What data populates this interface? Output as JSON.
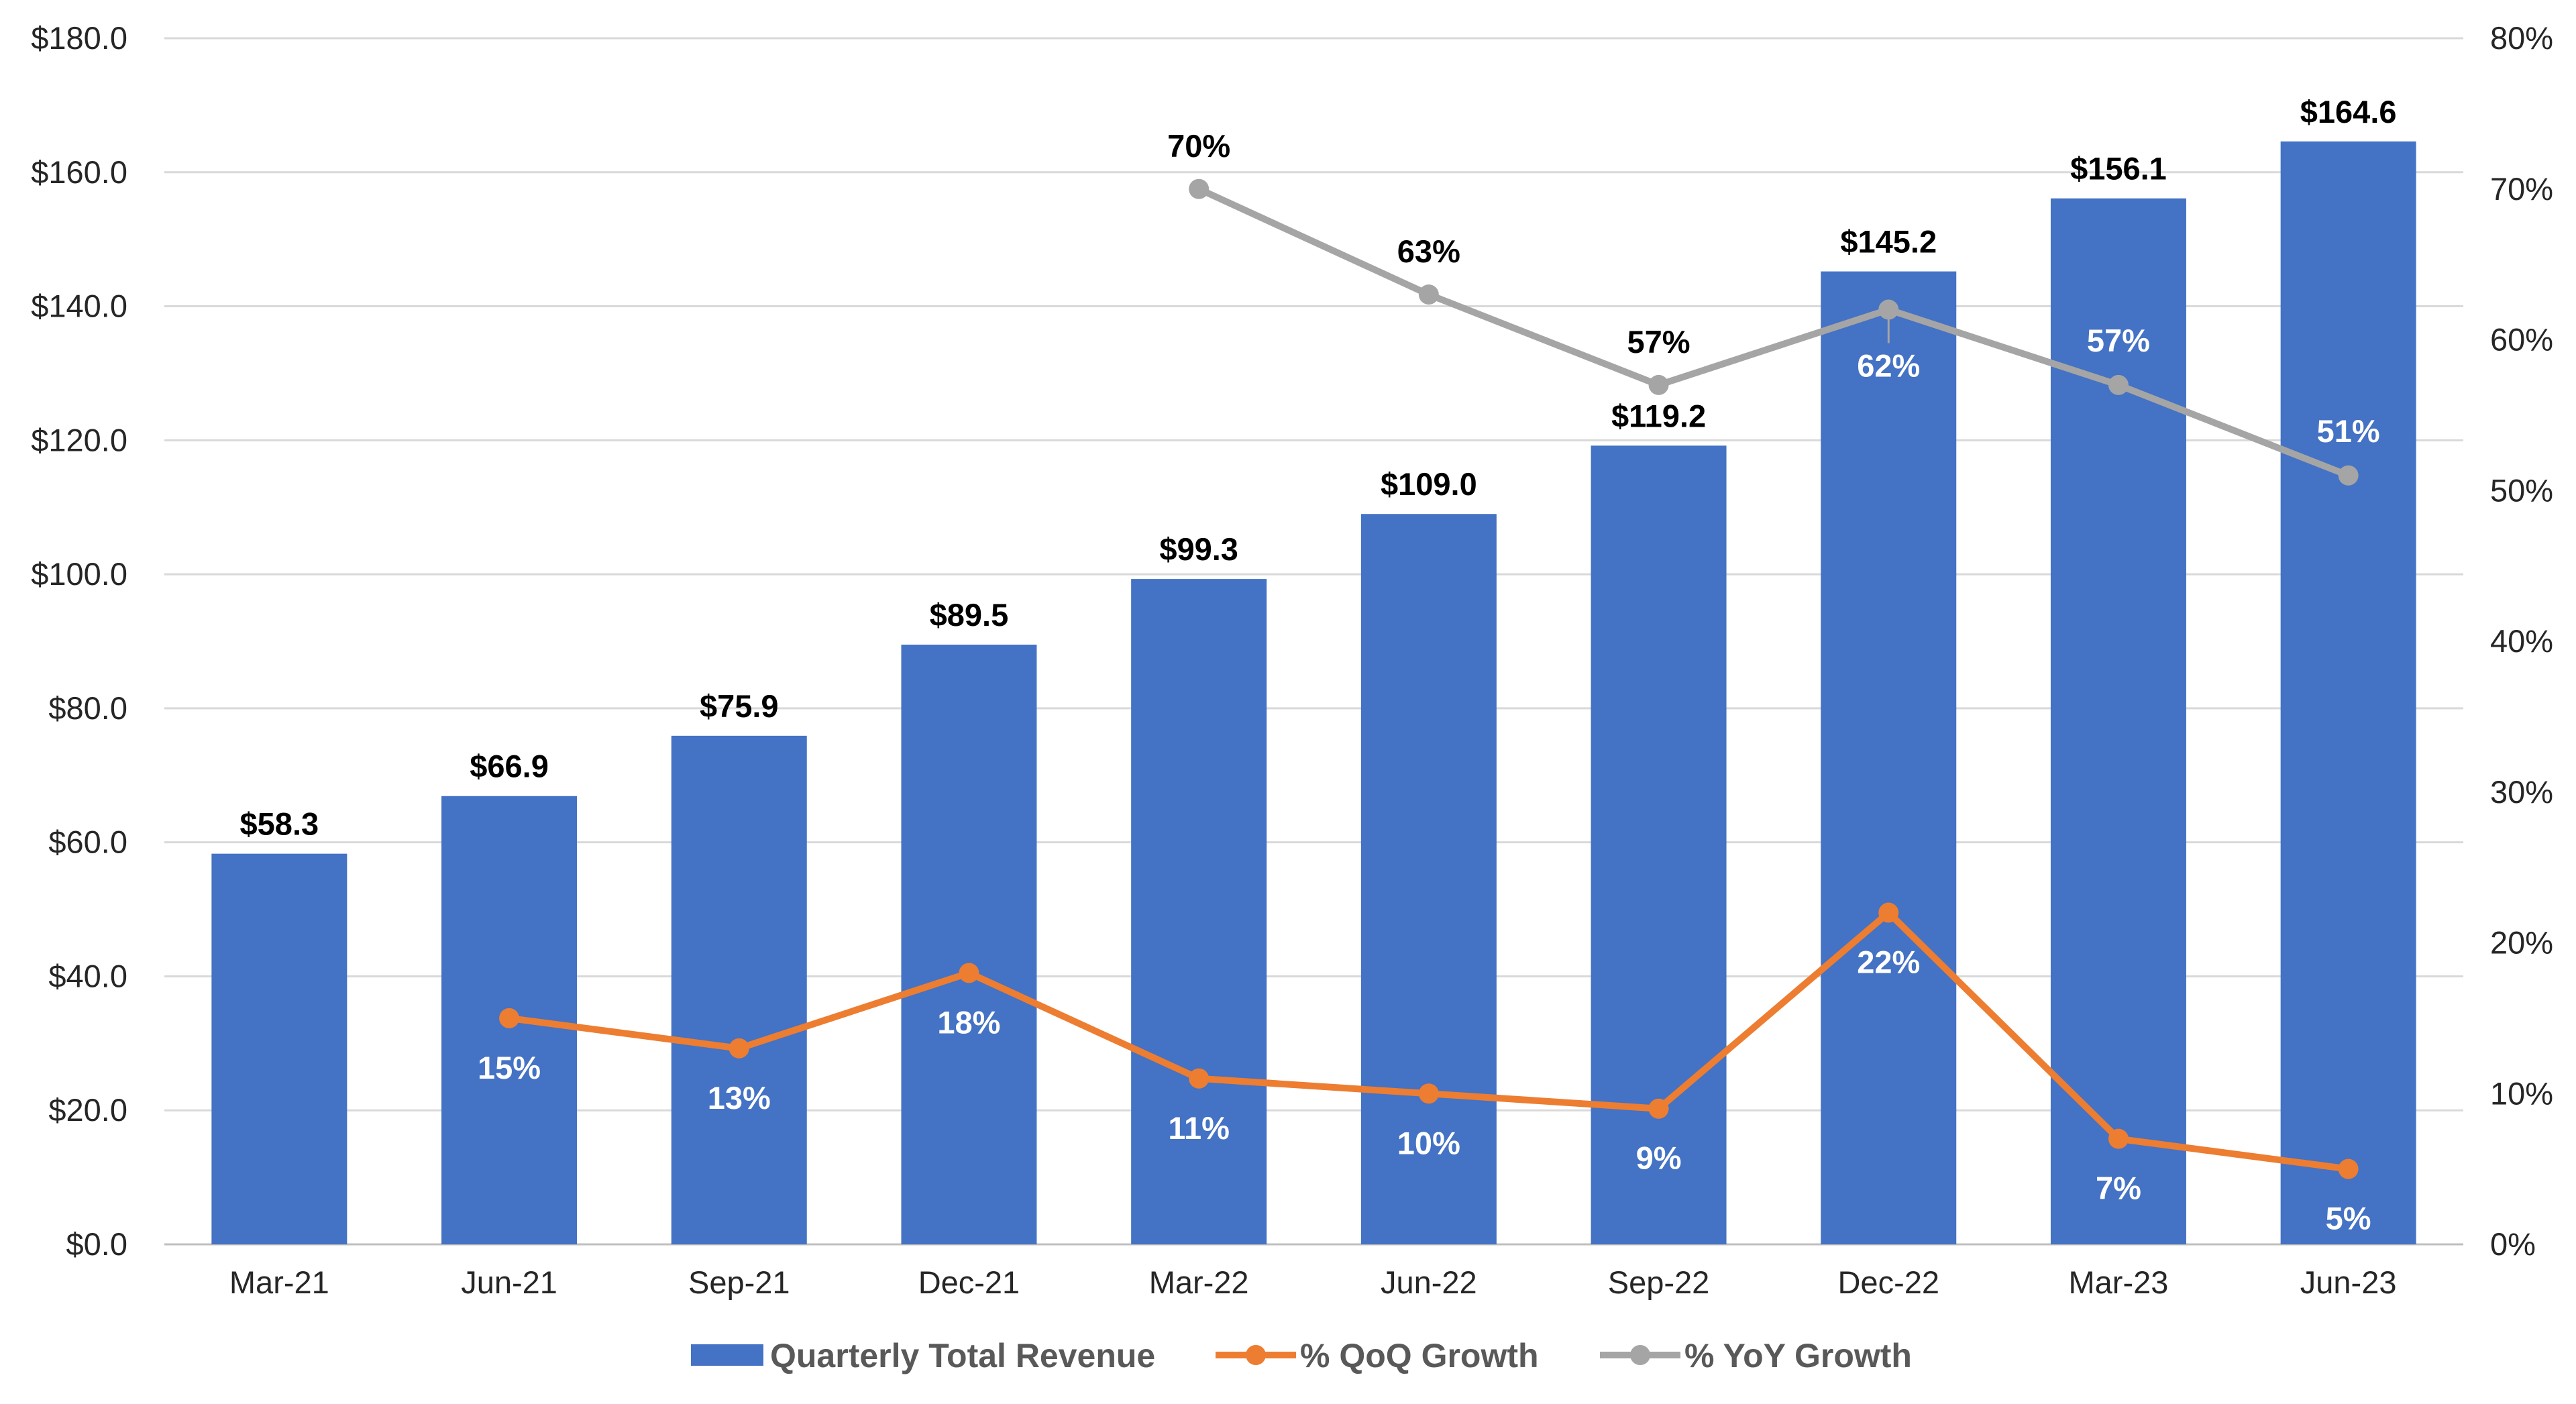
{
  "chart_data": {
    "type": "bar",
    "categories": [
      "Mar-21",
      "Jun-21",
      "Sep-21",
      "Dec-21",
      "Mar-22",
      "Jun-22",
      "Sep-22",
      "Dec-22",
      "Mar-23",
      "Jun-23"
    ],
    "y_left": {
      "ylim": [
        0,
        180
      ],
      "ticks": [
        "$0.0",
        "$20.0",
        "$40.0",
        "$60.0",
        "$80.0",
        "$100.0",
        "$120.0",
        "$140.0",
        "$160.0",
        "$180.0"
      ]
    },
    "y_right": {
      "ylim": [
        0,
        80
      ],
      "ticks": [
        "0%",
        "10%",
        "20%",
        "30%",
        "40%",
        "50%",
        "60%",
        "70%",
        "80%"
      ]
    },
    "grid": true,
    "legend_position": "bottom",
    "series": [
      {
        "name": "Quarterly Total Revenue",
        "type": "bar",
        "axis": "left",
        "color": "#4472C4",
        "values": [
          58.3,
          66.9,
          75.9,
          89.5,
          99.3,
          109.0,
          119.2,
          145.2,
          156.1,
          164.6
        ],
        "labels": [
          "$58.3",
          "$66.9",
          "$75.9",
          "$89.5",
          "$99.3",
          "$109.0",
          "$119.2",
          "$145.2",
          "$156.1",
          "$164.6"
        ]
      },
      {
        "name": "% QoQ Growth",
        "type": "line",
        "axis": "right",
        "color": "#ED7D31",
        "values": [
          null,
          15,
          13,
          18,
          11,
          10,
          9,
          22,
          7,
          5
        ],
        "labels": [
          "",
          "15%",
          "13%",
          "18%",
          "11%",
          "10%",
          "9%",
          "22%",
          "7%",
          "5%"
        ]
      },
      {
        "name": "% YoY Growth",
        "type": "line",
        "axis": "right",
        "color": "#A5A5A5",
        "values": [
          null,
          null,
          null,
          null,
          70,
          63,
          57,
          62,
          57,
          51
        ],
        "labels": [
          "",
          "",
          "",
          "",
          "70%",
          "63%",
          "57%",
          "62%",
          "57%",
          "51%"
        ]
      }
    ]
  }
}
